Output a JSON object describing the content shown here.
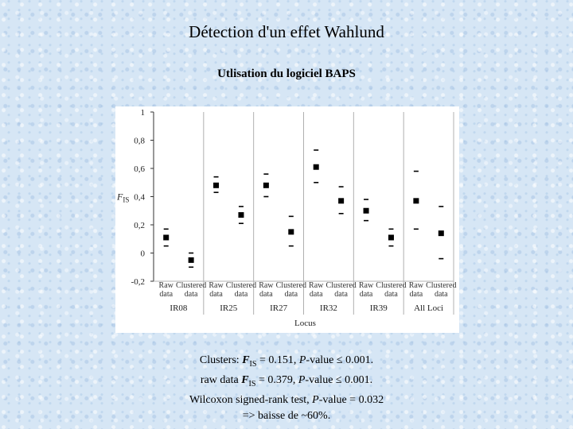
{
  "slide": {
    "title": "Détection d'un effet Wahlund",
    "subtitle": "Utlisation du logiciel BAPS"
  },
  "chart_data": {
    "type": "scatter",
    "xlabel": "Locus",
    "ylabel": "F",
    "ylabel_sub": "IS",
    "ylim": [
      -0.2,
      1
    ],
    "yticks": [
      -0.2,
      0,
      0.2,
      0.4,
      0.6,
      0.8,
      1
    ],
    "ytick_labels": [
      "-0,2",
      "0",
      "0,2",
      "0,4",
      "0,6",
      "0,8",
      "1"
    ],
    "series_labels": [
      {
        "line1": "Raw",
        "line2": "data"
      },
      {
        "line1": "Clustered",
        "line2": "data"
      }
    ],
    "groups": [
      {
        "name": "IR08",
        "points": [
          {
            "kind": "raw",
            "value": 0.11,
            "upper": 0.17,
            "lower": 0.05
          },
          {
            "kind": "clustered",
            "value": -0.05,
            "upper": 0.0,
            "lower": -0.1
          }
        ]
      },
      {
        "name": "IR25",
        "points": [
          {
            "kind": "raw",
            "value": 0.48,
            "upper": 0.54,
            "lower": 0.43
          },
          {
            "kind": "clustered",
            "value": 0.27,
            "upper": 0.33,
            "lower": 0.21
          }
        ]
      },
      {
        "name": "IR27",
        "points": [
          {
            "kind": "raw",
            "value": 0.48,
            "upper": 0.56,
            "lower": 0.4
          },
          {
            "kind": "clustered",
            "value": 0.15,
            "upper": 0.26,
            "lower": 0.05
          }
        ]
      },
      {
        "name": "IR32",
        "points": [
          {
            "kind": "raw",
            "value": 0.61,
            "upper": 0.73,
            "lower": 0.5
          },
          {
            "kind": "clustered",
            "value": 0.37,
            "upper": 0.47,
            "lower": 0.28
          }
        ]
      },
      {
        "name": "IR39",
        "points": [
          {
            "kind": "raw",
            "value": 0.3,
            "upper": 0.38,
            "lower": 0.23
          },
          {
            "kind": "clustered",
            "value": 0.11,
            "upper": 0.17,
            "lower": 0.05
          }
        ]
      },
      {
        "name": "All Loci",
        "points": [
          {
            "kind": "raw",
            "value": 0.37,
            "upper": 0.58,
            "lower": 0.17
          },
          {
            "kind": "clustered",
            "value": 0.14,
            "upper": 0.33,
            "lower": -0.04
          }
        ]
      }
    ],
    "grid": {
      "vertical_separators": true,
      "horizontal": false
    },
    "colors": {
      "marker": "#000000",
      "separator": "#b0b0b0",
      "frame": "#333333"
    }
  },
  "caption": {
    "line1": {
      "prefix": "Clusters: ",
      "f": "F",
      "sub": "IS",
      "mid": " = 0.151, ",
      "p": "P",
      "suffix": "-value ≤ 0.001."
    },
    "line2": {
      "prefix": "raw data ",
      "f": "F",
      "sub": "IS",
      "mid": " = 0.379, ",
      "p": "P",
      "suffix": "-value ≤ 0.001."
    },
    "line3": {
      "prefix": "Wilcoxon signed-rank test, ",
      "p": "P",
      "suffix": "-value = 0.032"
    },
    "line4": "=> baisse de ~60%."
  }
}
